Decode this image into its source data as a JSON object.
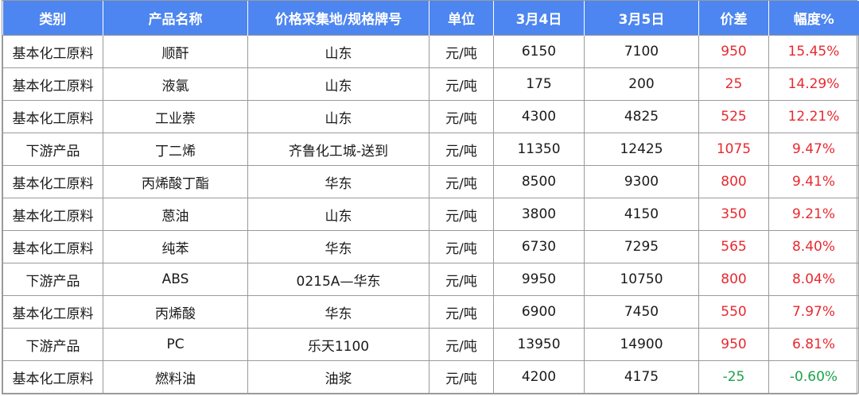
{
  "headers": [
    "类别",
    "产品名称",
    "价格采集地/规格牌号",
    "单位",
    "3月4日",
    "3月5日",
    "价差",
    "幅度%"
  ],
  "rows": [
    {
      "category": "基本化工原料",
      "product": "顺酐",
      "location": "山东",
      "unit": "元/吨",
      "price_0304": "6150",
      "price_0305": "7100",
      "diff": "950",
      "pct": "15.45%",
      "trend": "up"
    },
    {
      "category": "基本化工原料",
      "product": "液氯",
      "location": "山东",
      "unit": "元/吨",
      "price_0304": "175",
      "price_0305": "200",
      "diff": "25",
      "pct": "14.29%",
      "trend": "up"
    },
    {
      "category": "基本化工原料",
      "product": "工业萘",
      "location": "山东",
      "unit": "元/吨",
      "price_0304": "4300",
      "price_0305": "4825",
      "diff": "525",
      "pct": "12.21%",
      "trend": "up"
    },
    {
      "category": "下游产品",
      "product": "丁二烯",
      "location": "齐鲁化工城-送到",
      "unit": "元/吨",
      "price_0304": "11350",
      "price_0305": "12425",
      "diff": "1075",
      "pct": "9.47%",
      "trend": "up"
    },
    {
      "category": "基本化工原料",
      "product": "丙烯酸丁酯",
      "location": "华东",
      "unit": "元/吨",
      "price_0304": "8500",
      "price_0305": "9300",
      "diff": "800",
      "pct": "9.41%",
      "trend": "up"
    },
    {
      "category": "基本化工原料",
      "product": "蒽油",
      "location": "山东",
      "unit": "元/吨",
      "price_0304": "3800",
      "price_0305": "4150",
      "diff": "350",
      "pct": "9.21%",
      "trend": "up"
    },
    {
      "category": "基本化工原料",
      "product": "纯苯",
      "location": "华东",
      "unit": "元/吨",
      "price_0304": "6730",
      "price_0305": "7295",
      "diff": "565",
      "pct": "8.40%",
      "trend": "up"
    },
    {
      "category": "下游产品",
      "product": "ABS",
      "location": "0215A—华东",
      "unit": "元/吨",
      "price_0304": "9950",
      "price_0305": "10750",
      "diff": "800",
      "pct": "8.04%",
      "trend": "up"
    },
    {
      "category": "基本化工原料",
      "product": "丙烯酸",
      "location": "华东",
      "unit": "元/吨",
      "price_0304": "6900",
      "price_0305": "7450",
      "diff": "550",
      "pct": "7.97%",
      "trend": "up"
    },
    {
      "category": "下游产品",
      "product": "PC",
      "location": "乐天1100",
      "unit": "元/吨",
      "price_0304": "13950",
      "price_0305": "14900",
      "diff": "950",
      "pct": "6.81%",
      "trend": "up"
    },
    {
      "category": "基本化工原料",
      "product": "燃料油",
      "location": "油浆",
      "unit": "元/吨",
      "price_0304": "4200",
      "price_0305": "4175",
      "diff": "-25",
      "pct": "-0.60%",
      "trend": "down"
    }
  ],
  "colors": {
    "header_bg": "#4d86f0",
    "up": "#e8292f",
    "down": "#1aa34a"
  }
}
